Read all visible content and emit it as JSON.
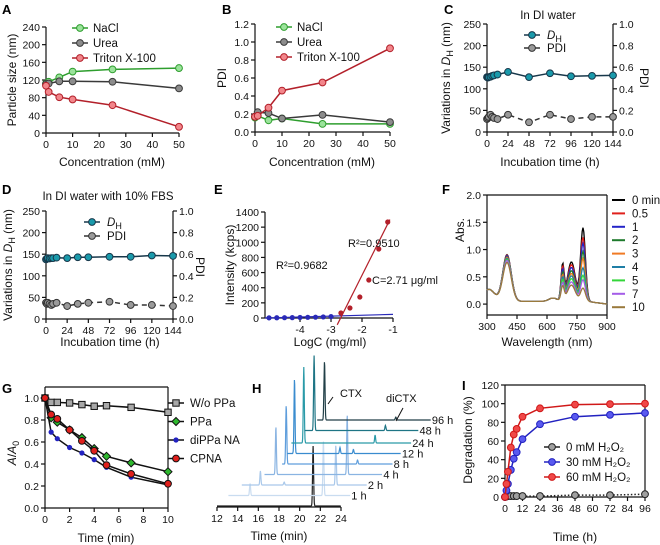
{
  "chart_data": [
    {
      "panel": "A",
      "type": "line",
      "xlabel": "Concentration (mM)",
      "ylabel": "Particle size (nm)",
      "xlim": [
        0,
        50
      ],
      "ylim": [
        0,
        240
      ],
      "xticks": [
        "0",
        "10",
        "20",
        "30",
        "40",
        "50"
      ],
      "yticks": [
        "0",
        "40",
        "80",
        "120",
        "160",
        "200",
        "240"
      ],
      "legend": "top",
      "x": [
        0,
        1,
        5,
        10,
        25,
        50
      ],
      "series": [
        {
          "name": "NaCl",
          "values": [
            112,
            116,
            126,
            139,
            144,
            147
          ],
          "color": "#2e9e2e",
          "fill": "#9be39b",
          "marker": "circle"
        },
        {
          "name": "Urea",
          "values": [
            111,
            112,
            117,
            117,
            116,
            101
          ],
          "color": "#3a3a3a",
          "fill": "#8c8c8c",
          "marker": "circle"
        },
        {
          "name": "Triton X-100",
          "values": [
            107,
            93,
            81,
            76,
            63,
            14
          ],
          "color": "#b3202a",
          "fill": "#f2868b",
          "marker": "circle"
        }
      ]
    },
    {
      "panel": "B",
      "type": "line",
      "xlabel": "Concentration (mM)",
      "ylabel": "PDI",
      "xlim": [
        0,
        50
      ],
      "ylim": [
        0,
        1.2
      ],
      "xticks": [
        "0",
        "10",
        "20",
        "30",
        "40",
        "50"
      ],
      "yticks": [
        "0.0",
        "0.2",
        "0.4",
        "0.6",
        "0.8",
        "1.0",
        "1.2"
      ],
      "legend": "top-left",
      "x": [
        0,
        1,
        5,
        10,
        25,
        50
      ],
      "series": [
        {
          "name": "NaCl",
          "values": [
            0.16,
            0.18,
            0.13,
            0.15,
            0.09,
            0.09
          ],
          "color": "#2e9e2e",
          "fill": "#9be39b",
          "marker": "circle"
        },
        {
          "name": "Urea",
          "values": [
            0.17,
            0.22,
            0.21,
            0.15,
            0.19,
            0.11
          ],
          "color": "#3a3a3a",
          "fill": "#8c8c8c",
          "marker": "circle"
        },
        {
          "name": "Triton X-100",
          "values": [
            0.17,
            0.18,
            0.27,
            0.46,
            0.55,
            0.93
          ],
          "color": "#b3202a",
          "fill": "#f2868b",
          "marker": "circle"
        }
      ]
    },
    {
      "panel": "C",
      "type": "line",
      "title": "In DI water",
      "xlabel": "Incubation time (h)",
      "ylabel_pre": "Variations in ",
      "ylabel_var": "D",
      "ylabel_sub": "H",
      "ylabel_post": " (nm)",
      "y2label": "PDI",
      "xlim": [
        0,
        144
      ],
      "ylim": [
        0,
        250
      ],
      "y2lim": [
        0,
        1.0
      ],
      "xticks": [
        "0",
        "24",
        "48",
        "72",
        "96",
        "120",
        "144"
      ],
      "yticks": [
        "0",
        "50",
        "100",
        "150",
        "200",
        "250"
      ],
      "y2ticks": [
        "0.0",
        "0.2",
        "0.4",
        "0.6",
        "0.8",
        "1.0"
      ],
      "legend": "top",
      "x": [
        0,
        1,
        2,
        4,
        6,
        8,
        12,
        24,
        48,
        72,
        96,
        120,
        144
      ],
      "series": [
        {
          "name": "D",
          "name_sub": "H",
          "axis": "left",
          "values": [
            127,
            126,
            127,
            128,
            130,
            131,
            133,
            139,
            127,
            136,
            129,
            130,
            131
          ],
          "color": "#17374a",
          "fill": "#1a9aab",
          "marker": "circle"
        },
        {
          "name": "PDI",
          "axis": "right",
          "dashed": true,
          "values": [
            0.12,
            0.13,
            0.14,
            0.16,
            0.14,
            0.13,
            0.12,
            0.16,
            0.09,
            0.16,
            0.12,
            0.14,
            0.14
          ],
          "color": "#333333",
          "fill": "#9a9a9a",
          "marker": "circle"
        }
      ]
    },
    {
      "panel": "D",
      "type": "line",
      "title": "In DI water with 10% FBS",
      "xlabel": "Incubation time (h)",
      "ylabel_pre": "Variations in ",
      "ylabel_var": "D",
      "ylabel_sub": "H",
      "ylabel_post": " (nm)",
      "y2label": "PDI",
      "xlim": [
        0,
        144
      ],
      "ylim": [
        0,
        250
      ],
      "y2lim": [
        0,
        1.0
      ],
      "xticks": [
        "0",
        "24",
        "48",
        "72",
        "96",
        "120",
        "144"
      ],
      "yticks": [
        "0",
        "50",
        "100",
        "150",
        "200",
        "250"
      ],
      "y2ticks": [
        "0.0",
        "0.2",
        "0.4",
        "0.6",
        "0.8",
        "1.0"
      ],
      "legend": "top",
      "x": [
        0,
        1,
        2,
        4,
        6,
        8,
        12,
        24,
        36,
        48,
        72,
        96,
        120,
        144
      ],
      "series": [
        {
          "name": "D",
          "name_sub": "H",
          "axis": "left",
          "values": [
            138,
            140,
            141,
            140,
            141,
            141,
            142,
            141,
            143,
            143,
            144,
            144,
            147,
            146
          ],
          "color": "#17374a",
          "fill": "#1a9aab",
          "marker": "circle"
        },
        {
          "name": "PDI",
          "axis": "right",
          "dashed": true,
          "values": [
            0.15,
            0.14,
            0.15,
            0.14,
            0.13,
            0.14,
            0.15,
            0.12,
            0.14,
            0.15,
            0.16,
            0.13,
            0.13,
            0.12
          ],
          "color": "#333333",
          "fill": "#9a9a9a",
          "marker": "circle"
        }
      ]
    },
    {
      "panel": "E",
      "type": "scatter",
      "xlabel": "LogC (mg/ml)",
      "ylabel": "Intensity (kcps)",
      "xlim": [
        -5.13,
        -1
      ],
      "ylim": [
        0,
        1400
      ],
      "xticks": [
        "-4",
        "-3",
        "-2",
        "-1"
      ],
      "yticks": [
        "0",
        "200",
        "400",
        "600",
        "800",
        "1000",
        "1200",
        "1400"
      ],
      "series": [
        {
          "x": [
            -5.0,
            -4.75,
            -4.5,
            -4.25,
            -4.0,
            -3.75,
            -3.5,
            -3.25,
            -3.0
          ],
          "values": [
            2,
            3,
            4,
            5,
            7,
            9,
            11,
            14,
            18
          ],
          "color": "#2a2ab8",
          "marker": "dot"
        },
        {
          "x": [
            -2.68,
            -2.39,
            -2.07,
            -1.78,
            -1.46,
            -1.17
          ],
          "values": [
            66,
            132,
            277,
            502,
            911,
            1268
          ],
          "color": "#b3202a",
          "marker": "dot"
        }
      ],
      "fits": [
        {
          "x": [
            -5.13,
            -1
          ],
          "values": [
            0,
            48
          ],
          "color": "#2a2ab8"
        },
        {
          "x": [
            -2.8,
            -1.1
          ],
          "values": [
            -90,
            1300
          ],
          "color": "#b3202a"
        }
      ],
      "annotations": {
        "r2_high": "R²=0.9510",
        "r2_low": "R²=0.9682",
        "cmc": "C=2.71 μg/ml"
      }
    },
    {
      "panel": "F",
      "type": "line",
      "xlabel": "Wavelength (nm)",
      "ylabel": "Abs.",
      "xlim": [
        300,
        900
      ],
      "ylim": [
        -0.2,
        2.0
      ],
      "xticks": [
        "300",
        "450",
        "600",
        "750",
        "900"
      ],
      "yticks": [
        "0.0",
        "0.5",
        "1.0",
        "1.5",
        "2.0"
      ],
      "legend": "right",
      "series": [
        {
          "name": "0 min",
          "color": "#000000",
          "abs_400": 0.9,
          "abs_680": 0.85,
          "abs_780": 1.68
        },
        {
          "name": "0.5",
          "color": "#e0201c",
          "abs_400": 0.89,
          "abs_680": 0.79,
          "abs_780": 1.48
        },
        {
          "name": "1",
          "color": "#2424c8",
          "abs_400": 0.88,
          "abs_680": 0.73,
          "abs_780": 1.35
        },
        {
          "name": "2",
          "color": "#1e7a2c",
          "abs_400": 0.86,
          "abs_680": 0.66,
          "abs_780": 1.17
        },
        {
          "name": "3",
          "color": "#f07a24",
          "abs_400": 0.85,
          "abs_680": 0.6,
          "abs_780": 1.02
        },
        {
          "name": "4",
          "color": "#1f7fa6",
          "abs_400": 0.83,
          "abs_680": 0.55,
          "abs_780": 0.83
        },
        {
          "name": "5",
          "color": "#33d63a",
          "abs_400": 0.81,
          "abs_680": 0.49,
          "abs_780": 0.67
        },
        {
          "name": "7",
          "color": "#a45ce8",
          "abs_400": 0.79,
          "abs_680": 0.42,
          "abs_780": 0.56
        },
        {
          "name": "10",
          "color": "#9a7a3c",
          "abs_400": 0.75,
          "abs_680": 0.35,
          "abs_780": 0.38
        }
      ]
    },
    {
      "panel": "G",
      "type": "line",
      "xlabel": "Time (min)",
      "ylabel_var": "A",
      "ylabel_mid": "/",
      "ylabel_var2": "A",
      "ylabel_sub": "0",
      "xlim": [
        0,
        10
      ],
      "ylim": [
        0,
        1.1
      ],
      "xticks": [
        "0",
        "2",
        "4",
        "6",
        "8",
        "10"
      ],
      "yticks": [
        "0.0",
        "0.2",
        "0.4",
        "0.6",
        "0.8",
        "1.0"
      ],
      "legend": "right",
      "x": [
        0,
        0.5,
        1,
        2,
        3,
        4,
        5,
        7,
        10
      ],
      "series": [
        {
          "name": "W/o PPa",
          "values": [
            1.0,
            0.96,
            0.96,
            0.955,
            0.94,
            0.925,
            0.93,
            0.915,
            0.87
          ],
          "color": "#111111",
          "fill": "#a8a8a8",
          "marker": "square"
        },
        {
          "name": "PPa",
          "values": [
            1.0,
            0.82,
            0.78,
            0.71,
            0.64,
            0.54,
            0.47,
            0.41,
            0.33
          ],
          "color": "#111111",
          "fill": "#2eb82e",
          "marker": "diamond"
        },
        {
          "name": "diPPa NA",
          "values": [
            1.0,
            0.69,
            0.63,
            0.55,
            0.5,
            0.44,
            0.37,
            0.28,
            0.21
          ],
          "color": "#111111",
          "fill": "#2222c0",
          "marker": "dot"
        },
        {
          "name": "CPNA",
          "values": [
            1.0,
            0.85,
            0.81,
            0.71,
            0.61,
            0.52,
            0.39,
            0.31,
            0.22
          ],
          "color": "#111111",
          "fill": "#e0201c",
          "marker": "circle"
        }
      ]
    },
    {
      "panel": "H",
      "type": "line",
      "xlabel": "Time (min)",
      "xlim": [
        12,
        24
      ],
      "xticks": [
        "12",
        "14",
        "16",
        "18",
        "20",
        "22",
        "24"
      ],
      "annotations": {
        "ctx": "CTX",
        "dictx": "diCTX"
      },
      "traces": [
        {
          "label": "",
          "color": "#222222",
          "start": 12.0,
          "end": 24.0,
          "peaks": [
            [
              21.3,
              60
            ]
          ]
        },
        {
          "label": "1 h",
          "color": "#c9dcf0",
          "start": 13.1,
          "end": 24.9,
          "peaks": [
            [
              15.2,
              12
            ],
            [
              22.3,
              55
            ]
          ]
        },
        {
          "label": "2 h",
          "color": "#a9c8ea",
          "start": 14.4,
          "end": 26.5,
          "peaks": [
            [
              16.2,
              14
            ],
            [
              23.5,
              40
            ],
            [
              18.5,
              3
            ]
          ]
        },
        {
          "label": "4 h",
          "color": "#8ab4e2",
          "start": 16.6,
          "end": 28.0,
          "peaks": [
            [
              17.7,
              48
            ],
            [
              24.6,
              60
            ]
          ]
        },
        {
          "label": "8 h",
          "color": "#5f9edc",
          "start": 18.3,
          "end": 29.0,
          "peaks": [
            [
              18.7,
              59
            ],
            [
              25.6,
              4
            ]
          ]
        },
        {
          "label": "12 h",
          "color": "#3a8ccf",
          "start": 18.8,
          "end": 29.8,
          "peaks": [
            [
              19.5,
              75
            ],
            [
              23.9,
              6
            ],
            [
              25.2,
              4
            ]
          ]
        },
        {
          "label": "24 h",
          "color": "#2a9aa8",
          "start": 19.2,
          "end": 30.8,
          "peaks": [
            [
              20.4,
              76
            ],
            [
              27.3,
              8
            ]
          ]
        },
        {
          "label": "48 h",
          "color": "#1e7585",
          "start": 20.5,
          "end": 31.5,
          "peaks": [
            [
              21.4,
              75
            ],
            [
              28.3,
              5
            ]
          ]
        },
        {
          "label": "96 h",
          "color": "#213f47",
          "start": 21.7,
          "end": 32.7,
          "peaks": [
            [
              22.4,
              59
            ],
            [
              29.3,
              3
            ]
          ]
        }
      ]
    },
    {
      "panel": "I",
      "type": "line",
      "xlabel": "Time (h)",
      "ylabel": "Degradation (%)",
      "xlim": [
        0,
        96
      ],
      "ylim": [
        0,
        120
      ],
      "xticks": [
        "0",
        "12",
        "24",
        "36",
        "48",
        "60",
        "72",
        "84",
        "96"
      ],
      "yticks": [
        "0",
        "20",
        "40",
        "60",
        "80",
        "100",
        "120"
      ],
      "legend": "center-right",
      "x": [
        0,
        1,
        2,
        4,
        6,
        8,
        12,
        24,
        48,
        72,
        96
      ],
      "series": [
        {
          "name": "0 mM H₂O₂",
          "values": [
            0,
            0.5,
            1,
            1,
            1,
            1,
            1,
            1,
            2,
            2,
            3
          ],
          "color": "#222222",
          "fill": "#a0a0a0",
          "marker": "circle",
          "dotted": true
        },
        {
          "name": "30 mM H₂O₂",
          "values": [
            0,
            7,
            14,
            29,
            41,
            48,
            62,
            78,
            86,
            88,
            90
          ],
          "color": "#2222c0",
          "fill": "#5a5af0",
          "marker": "circle"
        },
        {
          "name": "60 mM H₂O₂",
          "values": [
            0,
            14,
            27,
            53,
            67,
            73,
            86,
            95,
            99,
            99.5,
            100
          ],
          "color": "#d01818",
          "fill": "#f04848",
          "marker": "circle"
        }
      ]
    }
  ]
}
